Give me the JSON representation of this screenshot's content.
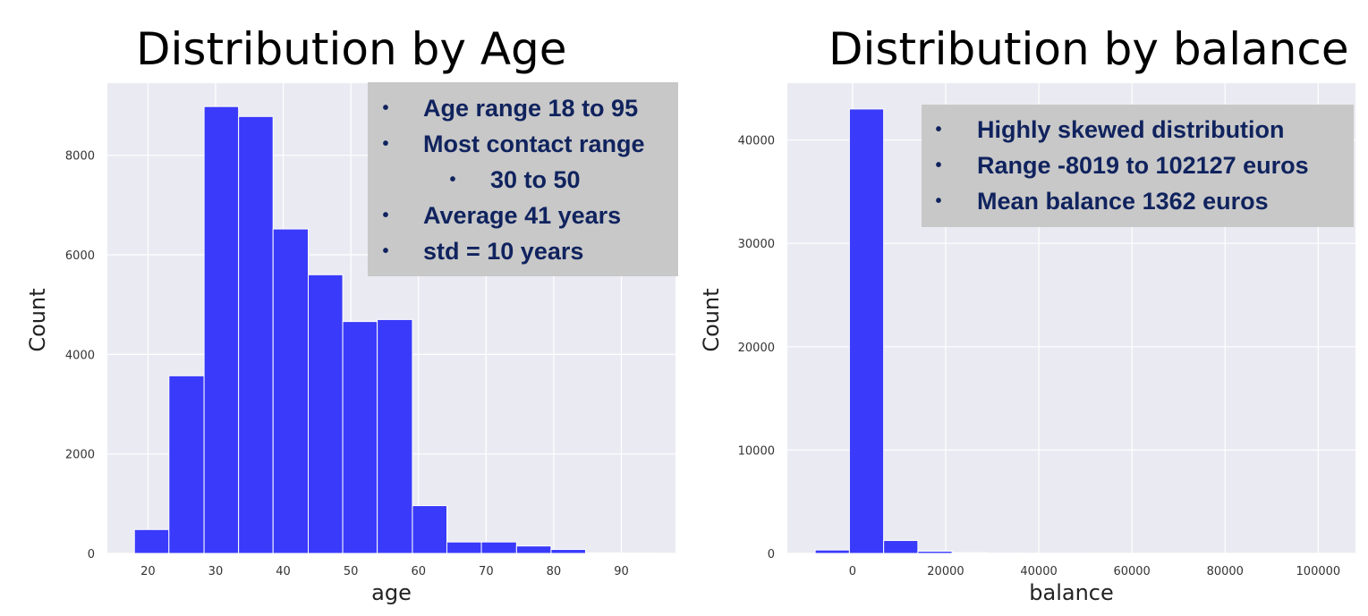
{
  "titles": {
    "age": "Distribution by Age",
    "balance": "Distribution by balance"
  },
  "notes": {
    "age": [
      {
        "text": "Age range 18 to 95",
        "level": 1
      },
      {
        "text": "Most contact range",
        "level": 1
      },
      {
        "text": "30 to 50",
        "level": 2
      },
      {
        "text": "Average 41 years",
        "level": 1
      },
      {
        "text": "std = 10 years",
        "level": 1
      }
    ],
    "balance": [
      {
        "text": "Highly skewed distribution",
        "level": 1
      },
      {
        "text": "Range -8019 to 102127 euros",
        "level": 1
      },
      {
        "text": "Mean balance 1362 euros",
        "level": 1
      }
    ],
    "bullet_glyph": "•"
  },
  "chart_data": [
    {
      "type": "bar",
      "title": "Distribution by Age",
      "xlabel": "age",
      "ylabel": "Count",
      "xlim": [
        14,
        98
      ],
      "ylim": [
        0,
        9450
      ],
      "xticks": [
        20,
        30,
        40,
        50,
        60,
        70,
        80,
        90
      ],
      "yticks": [
        0,
        2000,
        4000,
        6000,
        8000
      ],
      "grid": true,
      "bar_color": "#3a3afa",
      "background": "#eaeaf2",
      "bins": [
        {
          "start": 18.0,
          "end": 23.1,
          "count": 480
        },
        {
          "start": 23.1,
          "end": 28.3,
          "count": 3570
        },
        {
          "start": 28.3,
          "end": 33.4,
          "count": 8980
        },
        {
          "start": 33.4,
          "end": 38.5,
          "count": 8780
        },
        {
          "start": 38.5,
          "end": 43.7,
          "count": 6520
        },
        {
          "start": 43.7,
          "end": 48.8,
          "count": 5600
        },
        {
          "start": 48.8,
          "end": 53.9,
          "count": 4660
        },
        {
          "start": 53.9,
          "end": 59.1,
          "count": 4700
        },
        {
          "start": 59.1,
          "end": 64.2,
          "count": 960
        },
        {
          "start": 64.2,
          "end": 69.3,
          "count": 230
        },
        {
          "start": 69.3,
          "end": 74.5,
          "count": 230
        },
        {
          "start": 74.5,
          "end": 79.6,
          "count": 150
        },
        {
          "start": 79.6,
          "end": 84.7,
          "count": 80
        },
        {
          "start": 84.7,
          "end": 89.9,
          "count": 10
        },
        {
          "start": 89.9,
          "end": 95.0,
          "count": 5
        }
      ]
    },
    {
      "type": "bar",
      "title": "Distribution by balance",
      "xlabel": "balance",
      "ylabel": "Count",
      "xlim": [
        -14000,
        108000
      ],
      "ylim": [
        0,
        45500
      ],
      "xticks": [
        0,
        20000,
        40000,
        60000,
        80000,
        100000
      ],
      "yticks": [
        0,
        10000,
        20000,
        30000,
        40000
      ],
      "grid": true,
      "bar_color": "#3a3afa",
      "background": "#eaeaf2",
      "bins": [
        {
          "start": -8019,
          "end": -670,
          "count": 330
        },
        {
          "start": -670,
          "end": 6680,
          "count": 43000
        },
        {
          "start": 6680,
          "end": 14030,
          "count": 1250
        },
        {
          "start": 14030,
          "end": 21380,
          "count": 210
        },
        {
          "start": 21380,
          "end": 28730,
          "count": 80
        },
        {
          "start": 28730,
          "end": 36080,
          "count": 30
        },
        {
          "start": 36080,
          "end": 43430,
          "count": 15
        },
        {
          "start": 43430,
          "end": 50780,
          "count": 8
        },
        {
          "start": 50780,
          "end": 58130,
          "count": 6
        },
        {
          "start": 58130,
          "end": 65480,
          "count": 4
        },
        {
          "start": 65480,
          "end": 72830,
          "count": 3
        },
        {
          "start": 72830,
          "end": 80180,
          "count": 2
        },
        {
          "start": 80180,
          "end": 87530,
          "count": 2
        },
        {
          "start": 87530,
          "end": 94880,
          "count": 1
        },
        {
          "start": 94880,
          "end": 102127,
          "count": 2
        }
      ]
    }
  ]
}
